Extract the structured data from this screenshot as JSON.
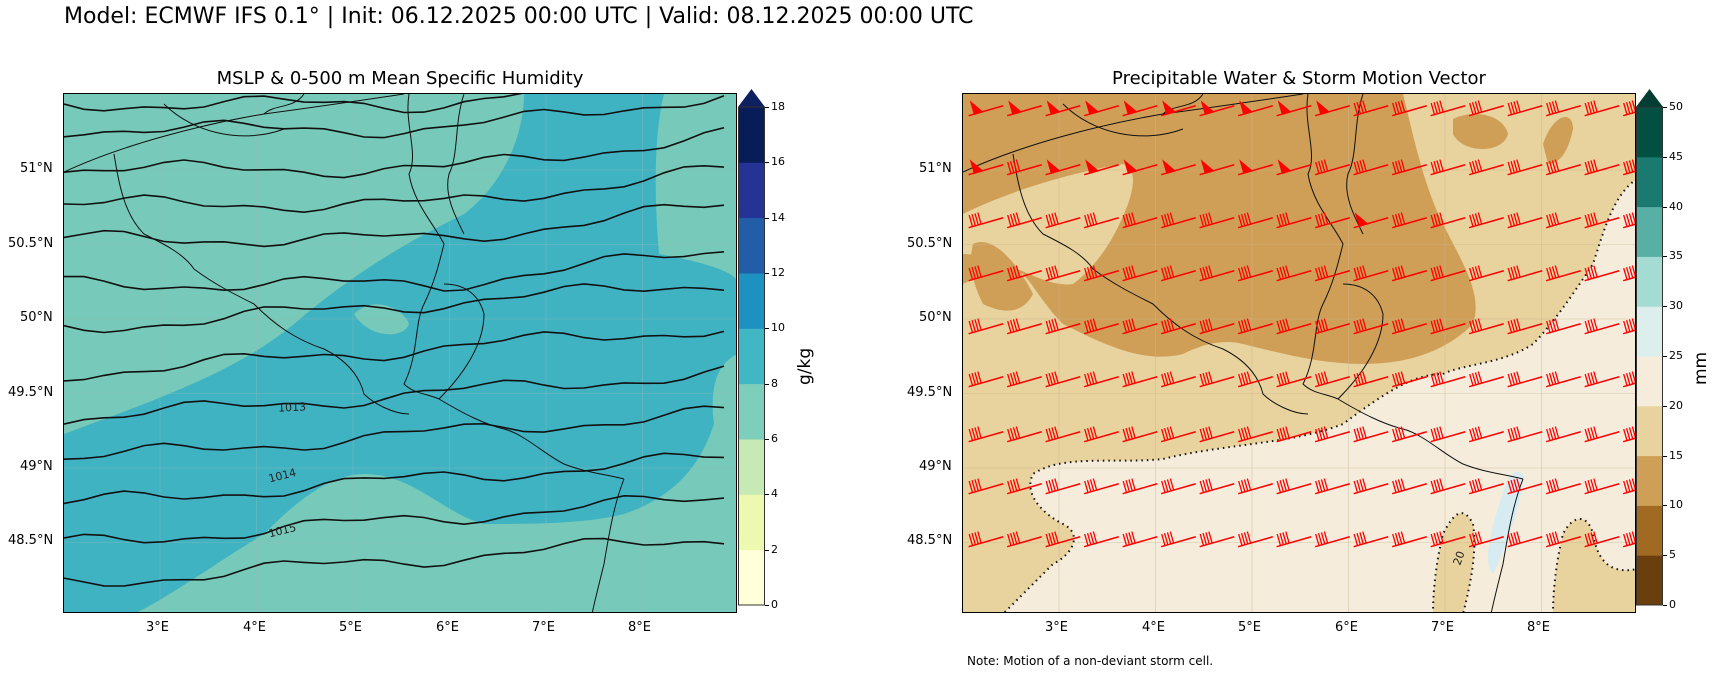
{
  "suptitle": "Model: ECMWF IFS 0.1° | Init: 06.12.2025 00:00 UTC | Valid: 08.12.2025 00:00 UTC",
  "note": "Note: Motion of a non-deviant storm cell.",
  "panels": [
    {
      "title": "MSLP & 0-500 m Mean Specific Humidity",
      "lon_ticks": [
        "3°E",
        "4°E",
        "5°E",
        "6°E",
        "7°E",
        "8°E"
      ],
      "lat_ticks": [
        "51°N",
        "50.5°N",
        "50°N",
        "49.5°N",
        "49°N",
        "48.5°N"
      ],
      "contour_labels": [
        "1013",
        "1014",
        "1015"
      ],
      "colorbar": {
        "label": "g/kg",
        "ticks": [
          "0",
          "2",
          "4",
          "6",
          "8",
          "10",
          "12",
          "14",
          "16",
          "18"
        ],
        "colors": [
          "#ffffd9",
          "#edf8b1",
          "#c7e9b4",
          "#7fcdbb",
          "#41b6c4",
          "#1d91c0",
          "#225ea8",
          "#253494",
          "#081d58"
        ],
        "extend": "max",
        "extend_color": "#0d1f5e"
      },
      "field_colors": {
        "low": "#77c9b9",
        "high": "#40b3c3",
        "mid": "#95d5c1"
      }
    },
    {
      "title": "Precipitable Water & Storm Motion Vector",
      "lon_ticks": [
        "3°E",
        "4°E",
        "5°E",
        "6°E",
        "7°E",
        "8°E"
      ],
      "lat_ticks": [
        "51°N",
        "50.5°N",
        "50°N",
        "49.5°N",
        "49°N",
        "48.5°N"
      ],
      "contour_labels": [
        "20"
      ],
      "colorbar": {
        "label": "mm",
        "ticks": [
          "0",
          "5",
          "10",
          "15",
          "20",
          "25",
          "30",
          "35",
          "40",
          "45",
          "50"
        ],
        "colors": [
          "#6b3e0d",
          "#a16a23",
          "#cf9f58",
          "#e8d29d",
          "#f5ecdb",
          "#dcefec",
          "#a4dbd2",
          "#58b0a4",
          "#1b7a70",
          "#034f42"
        ],
        "extend": "max",
        "extend_color": "#023d33"
      },
      "field_colors": {
        "dark": "#cf9f58",
        "mid": "#e8d29d",
        "light": "#f5ecdb",
        "lake": "#d6ecf2"
      },
      "barb_color": "#ff0000"
    }
  ]
}
